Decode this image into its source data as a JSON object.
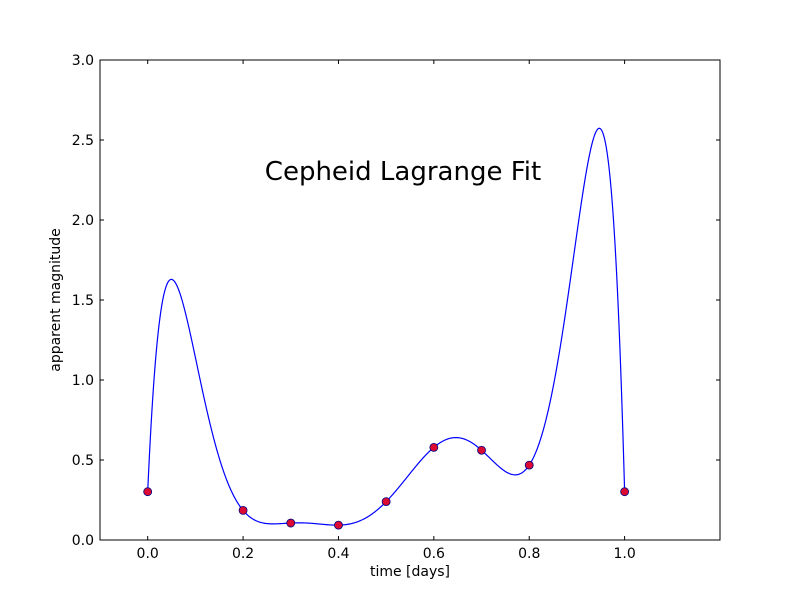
{
  "chart_data": {
    "type": "line",
    "title": "Cepheid Lagrange Fit",
    "xlabel": "time [days]",
    "ylabel": "apparent magnitude",
    "xlim": [
      -0.1,
      1.2
    ],
    "ylim": [
      0.0,
      3.0
    ],
    "xticks": [
      "0.0",
      "0.2",
      "0.4",
      "0.6",
      "0.8",
      "1.0"
    ],
    "xtick_values": [
      0.0,
      0.2,
      0.4,
      0.6,
      0.8,
      1.0
    ],
    "yticks": [
      "0.0",
      "0.5",
      "1.0",
      "1.5",
      "2.0",
      "2.5",
      "3.0"
    ],
    "ytick_values": [
      0.0,
      0.5,
      1.0,
      1.5,
      2.0,
      2.5,
      3.0
    ],
    "grid": false,
    "legend": "none",
    "series": [
      {
        "kind": "points",
        "x": [
          0.0,
          0.2,
          0.3,
          0.4,
          0.5,
          0.6,
          0.7,
          0.8,
          1.0
        ],
        "y": [
          0.302,
          0.185,
          0.106,
          0.093,
          0.24,
          0.579,
          0.561,
          0.468,
          0.302
        ],
        "color": "#dc0a32",
        "edge_color": "#000080"
      },
      {
        "kind": "fit-curve",
        "method": "lagrange",
        "color": "#0000ff"
      }
    ]
  }
}
